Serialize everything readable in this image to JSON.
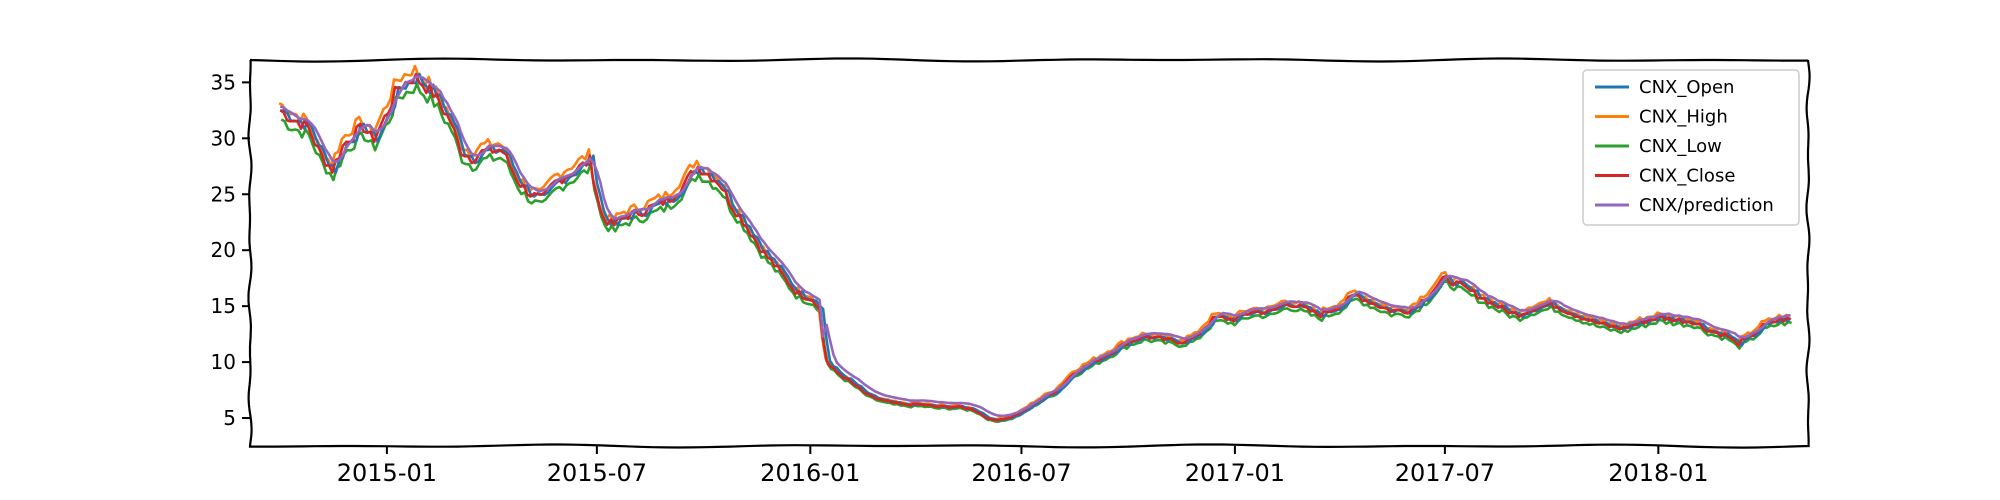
{
  "chart_data": {
    "type": "line",
    "x_axis": {
      "kind": "date",
      "range": [
        "2014-09-05",
        "2018-05-10"
      ],
      "ticks": [
        "2015-01",
        "2015-07",
        "2016-01",
        "2016-07",
        "2017-01",
        "2017-07",
        "2018-01"
      ],
      "tick_dates": [
        "2015-01-01",
        "2015-07-01",
        "2016-01-01",
        "2016-07-01",
        "2017-01-01",
        "2017-07-01",
        "2018-01-01"
      ]
    },
    "y_axis": {
      "range": [
        2.5,
        37.0
      ],
      "ticks": [
        5,
        10,
        15,
        20,
        25,
        30,
        35
      ]
    },
    "grid": false,
    "legend_position": "top-right",
    "colors": {
      "CNX_Open": "#1f77b4",
      "CNX_High": "#ff7f0e",
      "CNX_Low": "#2ca02c",
      "CNX_Close": "#d62728",
      "CNX/prediction": "#9467bd"
    },
    "series": [
      {
        "name": "CNX_Open"
      },
      {
        "name": "CNX_High"
      },
      {
        "name": "CNX_Low"
      },
      {
        "name": "CNX_Close"
      },
      {
        "name": "CNX/prediction"
      }
    ],
    "close_points": {
      "x": [
        "2014-10-01",
        "2014-10-10",
        "2014-10-25",
        "2014-11-05",
        "2014-11-15",
        "2014-11-25",
        "2014-12-05",
        "2014-12-12",
        "2014-12-20",
        "2015-01-01",
        "2015-01-10",
        "2015-01-25",
        "2015-02-10",
        "2015-02-25",
        "2015-03-05",
        "2015-03-15",
        "2015-03-25",
        "2015-04-10",
        "2015-04-25",
        "2015-05-05",
        "2015-05-15",
        "2015-05-25",
        "2015-06-10",
        "2015-06-25",
        "2015-07-05",
        "2015-07-15",
        "2015-07-25",
        "2015-08-10",
        "2015-08-20",
        "2015-09-01",
        "2015-09-15",
        "2015-09-25",
        "2015-10-05",
        "2015-10-15",
        "2015-10-25",
        "2015-11-05",
        "2015-11-20",
        "2015-12-05",
        "2015-12-20",
        "2016-01-05",
        "2016-01-10",
        "2016-01-12",
        "2016-01-14",
        "2016-01-16",
        "2016-01-25",
        "2016-02-05",
        "2016-02-20",
        "2016-03-05",
        "2016-03-20",
        "2016-04-05",
        "2016-04-20",
        "2016-05-05",
        "2016-05-20",
        "2016-06-05",
        "2016-06-20",
        "2016-07-01",
        "2016-07-15",
        "2016-08-01",
        "2016-08-15",
        "2016-09-01",
        "2016-09-15",
        "2016-10-01",
        "2016-10-15",
        "2016-11-01",
        "2016-11-15",
        "2016-11-28",
        "2016-12-05",
        "2016-12-15",
        "2017-01-01",
        "2017-01-15",
        "2017-02-01",
        "2017-02-15",
        "2017-03-01",
        "2017-03-15",
        "2017-04-01",
        "2017-04-15",
        "2017-05-01",
        "2017-05-15",
        "2017-06-01",
        "2017-06-15",
        "2017-07-01",
        "2017-07-15",
        "2017-08-01",
        "2017-08-15",
        "2017-09-01",
        "2017-09-15",
        "2017-10-01",
        "2017-10-15",
        "2017-11-01",
        "2017-11-15",
        "2017-12-01",
        "2017-12-15",
        "2018-01-01",
        "2018-01-15",
        "2018-02-01",
        "2018-02-10",
        "2018-02-20",
        "2018-03-01",
        "2018-03-10",
        "2018-03-20",
        "2018-04-01",
        "2018-04-15",
        "2018-04-25"
      ],
      "y": [
        32.5,
        31.8,
        31.0,
        28.5,
        27.2,
        29.5,
        30.5,
        31.0,
        29.8,
        32.2,
        34.5,
        35.5,
        34.0,
        31.5,
        29.0,
        28.2,
        28.8,
        29.0,
        26.0,
        25.0,
        24.5,
        26.0,
        27.0,
        28.0,
        23.0,
        22.2,
        23.0,
        23.5,
        24.0,
        24.5,
        26.0,
        27.5,
        26.8,
        26.0,
        24.0,
        22.5,
        20.0,
        18.2,
        16.2,
        15.5,
        14.5,
        12.0,
        10.5,
        9.8,
        9.0,
        8.2,
        7.0,
        6.5,
        6.2,
        6.2,
        6.0,
        6.0,
        5.8,
        4.8,
        5.0,
        5.5,
        6.5,
        7.5,
        9.0,
        10.0,
        10.8,
        11.8,
        12.3,
        12.0,
        11.8,
        12.2,
        13.0,
        14.0,
        13.8,
        14.5,
        14.5,
        15.3,
        14.8,
        14.2,
        15.0,
        16.0,
        15.2,
        14.6,
        14.6,
        15.8,
        17.5,
        16.8,
        15.8,
        15.0,
        14.2,
        14.8,
        15.2,
        14.5,
        13.8,
        13.3,
        13.0,
        13.5,
        14.0,
        13.8,
        13.6,
        13.0,
        12.6,
        12.4,
        11.6,
        12.2,
        13.2,
        13.8,
        13.8
      ]
    }
  }
}
